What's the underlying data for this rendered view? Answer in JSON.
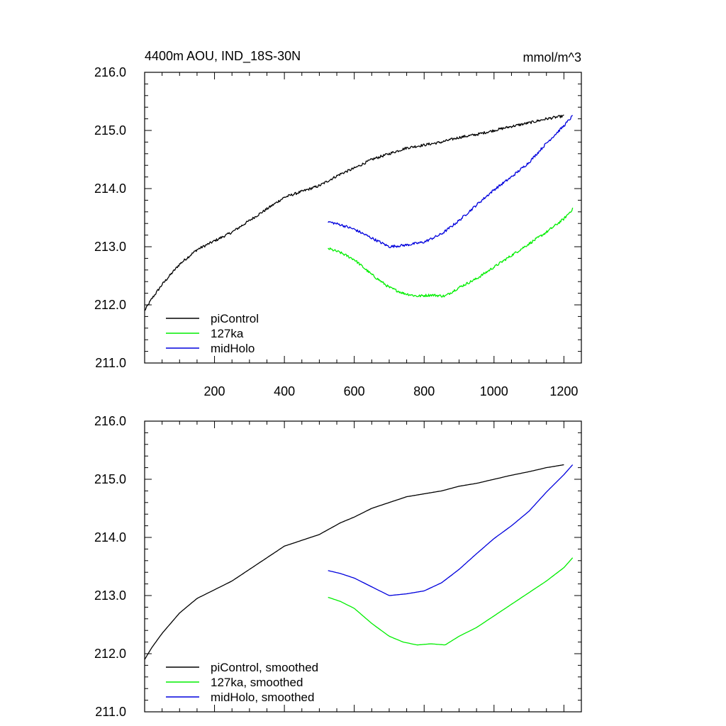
{
  "chart_data": [
    {
      "type": "line",
      "title_left": "4400m AOU, IND_18S-30N",
      "title_right": "mmol/m^3",
      "xlabel": "",
      "ylabel": "",
      "xlim": [
        0,
        1250
      ],
      "ylim": [
        211.0,
        216.0
      ],
      "x_ticks": [
        200,
        400,
        600,
        800,
        1000,
        1200
      ],
      "x_tick_labels": [
        "200",
        "400",
        "600",
        "800",
        "1000",
        "1200"
      ],
      "y_ticks": [
        211.0,
        212.0,
        213.0,
        214.0,
        215.0,
        216.0
      ],
      "y_tick_labels": [
        "211.0",
        "212.0",
        "213.0",
        "214.0",
        "215.0",
        "216.0"
      ],
      "legend_position": "bottom-left",
      "series": [
        {
          "name": "piControl",
          "color": "#000000",
          "noisy": true,
          "x": [
            0,
            20,
            50,
            100,
            150,
            200,
            250,
            300,
            350,
            400,
            450,
            500,
            530,
            560,
            600,
            650,
            700,
            750,
            800,
            850,
            900,
            950,
            1000,
            1050,
            1100,
            1150,
            1200
          ],
          "y": [
            211.9,
            212.1,
            212.35,
            212.7,
            212.95,
            213.1,
            213.25,
            213.45,
            213.65,
            213.85,
            213.95,
            214.05,
            214.15,
            214.25,
            214.35,
            214.5,
            214.6,
            214.7,
            214.75,
            214.8,
            214.88,
            214.93,
            215.0,
            215.07,
            215.13,
            215.2,
            215.25
          ]
        },
        {
          "name": "127ka",
          "color": "#00ee00",
          "noisy": true,
          "x": [
            525,
            560,
            600,
            650,
            700,
            740,
            780,
            820,
            860,
            900,
            950,
            1000,
            1050,
            1100,
            1150,
            1200,
            1225
          ],
          "y": [
            212.97,
            212.9,
            212.78,
            212.52,
            212.3,
            212.2,
            212.15,
            212.17,
            212.15,
            212.3,
            212.45,
            212.65,
            212.85,
            213.05,
            213.25,
            213.48,
            213.65
          ]
        },
        {
          "name": "midHolo",
          "color": "#0000dd",
          "noisy": true,
          "x": [
            525,
            560,
            600,
            650,
            700,
            750,
            800,
            850,
            900,
            950,
            1000,
            1050,
            1100,
            1150,
            1200,
            1225
          ],
          "y": [
            213.43,
            213.38,
            213.3,
            213.15,
            213.0,
            213.03,
            213.08,
            213.22,
            213.45,
            213.72,
            213.98,
            214.2,
            214.45,
            214.78,
            215.08,
            215.25
          ]
        }
      ]
    },
    {
      "type": "line",
      "title_left": "",
      "title_right": "",
      "xlabel": "",
      "ylabel": "",
      "xlim": [
        0,
        1250
      ],
      "ylim": [
        211.0,
        216.0
      ],
      "x_ticks": [
        200,
        400,
        600,
        800,
        1000,
        1200
      ],
      "x_tick_labels": [],
      "y_ticks": [
        211.0,
        212.0,
        213.0,
        214.0,
        215.0,
        216.0
      ],
      "y_tick_labels": [
        "211.0",
        "212.0",
        "213.0",
        "214.0",
        "215.0",
        "216.0"
      ],
      "legend_position": "bottom-left",
      "series": [
        {
          "name": "piControl, smoothed",
          "color": "#000000",
          "noisy": false,
          "x": [
            0,
            20,
            50,
            100,
            150,
            200,
            250,
            300,
            350,
            400,
            450,
            500,
            530,
            560,
            600,
            650,
            700,
            750,
            800,
            850,
            900,
            950,
            1000,
            1050,
            1100,
            1150,
            1200
          ],
          "y": [
            211.9,
            212.1,
            212.35,
            212.7,
            212.95,
            213.1,
            213.25,
            213.45,
            213.65,
            213.85,
            213.95,
            214.05,
            214.15,
            214.25,
            214.35,
            214.5,
            214.6,
            214.7,
            214.75,
            214.8,
            214.88,
            214.93,
            215.0,
            215.07,
            215.13,
            215.2,
            215.25
          ]
        },
        {
          "name": "127ka, smoothed",
          "color": "#00ee00",
          "noisy": false,
          "x": [
            525,
            560,
            600,
            650,
            700,
            740,
            780,
            820,
            860,
            900,
            950,
            1000,
            1050,
            1100,
            1150,
            1200,
            1225
          ],
          "y": [
            212.97,
            212.9,
            212.78,
            212.52,
            212.3,
            212.2,
            212.15,
            212.17,
            212.15,
            212.3,
            212.45,
            212.65,
            212.85,
            213.05,
            213.25,
            213.48,
            213.65
          ]
        },
        {
          "name": "midHolo, smoothed",
          "color": "#0000dd",
          "noisy": false,
          "x": [
            525,
            560,
            600,
            650,
            700,
            750,
            800,
            850,
            900,
            950,
            1000,
            1050,
            1100,
            1150,
            1200,
            1225
          ],
          "y": [
            213.43,
            213.38,
            213.3,
            213.15,
            213.0,
            213.03,
            213.08,
            213.22,
            213.45,
            213.72,
            213.98,
            214.2,
            214.45,
            214.78,
            215.08,
            215.25
          ]
        }
      ]
    }
  ]
}
